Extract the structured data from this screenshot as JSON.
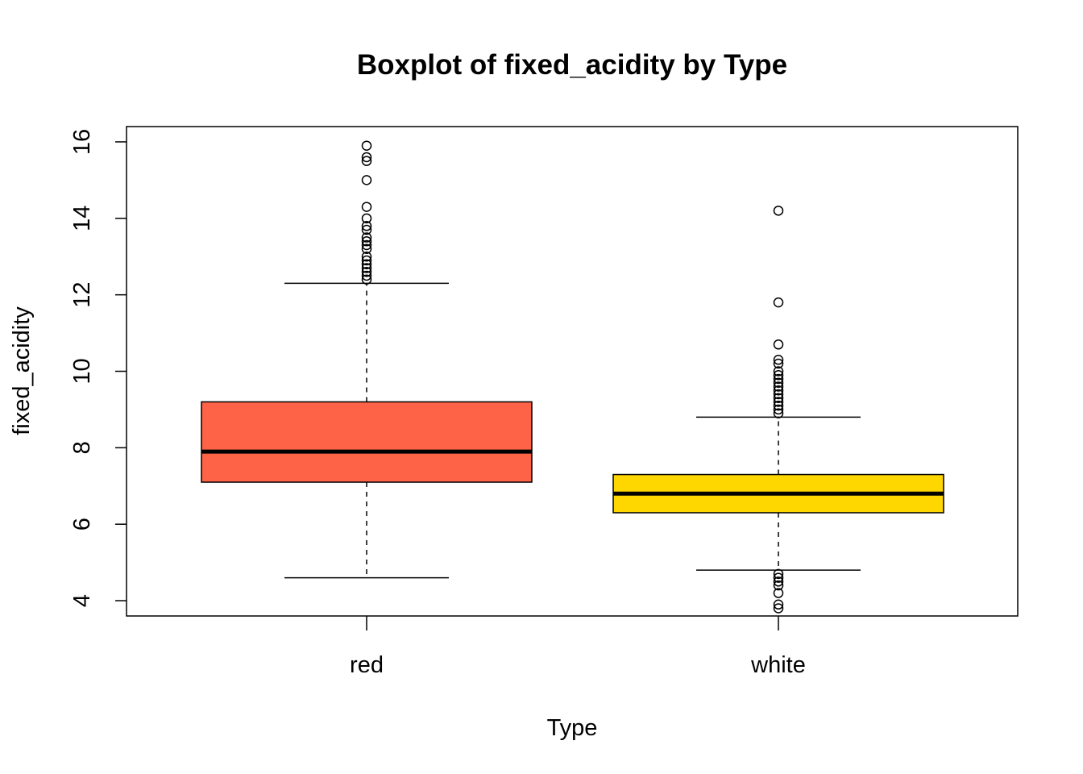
{
  "chart_data": {
    "type": "box",
    "title": "Boxplot of fixed_acidity by Type",
    "xlabel": "Type",
    "ylabel": "fixed_acidity",
    "ylim": [
      3.6,
      16.4
    ],
    "yticks": [
      4,
      6,
      8,
      10,
      12,
      14,
      16
    ],
    "categories": [
      "red",
      "white"
    ],
    "series": [
      {
        "category": "red",
        "color": "#FF6347",
        "whisker_low": 4.6,
        "q1": 7.1,
        "median": 7.9,
        "q3": 9.2,
        "whisker_high": 12.3,
        "outliers": [
          12.4,
          12.5,
          12.6,
          12.7,
          12.8,
          12.9,
          13.0,
          13.2,
          13.3,
          13.4,
          13.5,
          13.7,
          13.8,
          14.0,
          14.3,
          15.0,
          15.5,
          15.6,
          15.9
        ]
      },
      {
        "category": "white",
        "color": "#FFD700",
        "whisker_low": 4.8,
        "q1": 6.3,
        "median": 6.8,
        "q3": 7.3,
        "whisker_high": 8.8,
        "outliers": [
          3.8,
          3.9,
          4.2,
          4.4,
          4.5,
          4.6,
          4.7,
          8.9,
          9.0,
          9.1,
          9.2,
          9.3,
          9.4,
          9.5,
          9.6,
          9.7,
          9.8,
          9.9,
          10.0,
          10.2,
          10.3,
          10.7,
          11.8,
          14.2
        ]
      }
    ]
  }
}
